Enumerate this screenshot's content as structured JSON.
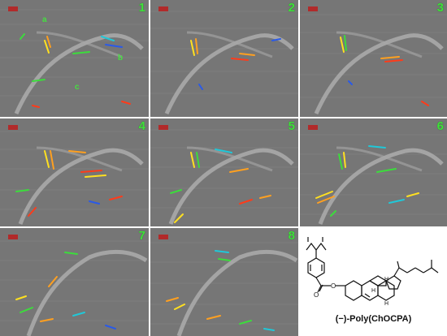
{
  "panels": [
    {
      "number": "1",
      "labels": [
        "a",
        "b",
        "c"
      ]
    },
    {
      "number": "2"
    },
    {
      "number": "3"
    },
    {
      "number": "4"
    },
    {
      "number": "5"
    },
    {
      "number": "6"
    },
    {
      "number": "7"
    },
    {
      "number": "8"
    }
  ],
  "structure": {
    "name": "(−)-Poly(ChOCPA)",
    "atom_labels": {
      "o1": "O",
      "o2": "O",
      "h1": "H",
      "h2": "H",
      "h3": "H"
    }
  },
  "colors": {
    "panel_number": "#3fe03a",
    "vector_palette": [
      "#ff3b1a",
      "#ffa020",
      "#ffe020",
      "#3cdc3c",
      "#20c8d8",
      "#2a5ae8"
    ]
  }
}
